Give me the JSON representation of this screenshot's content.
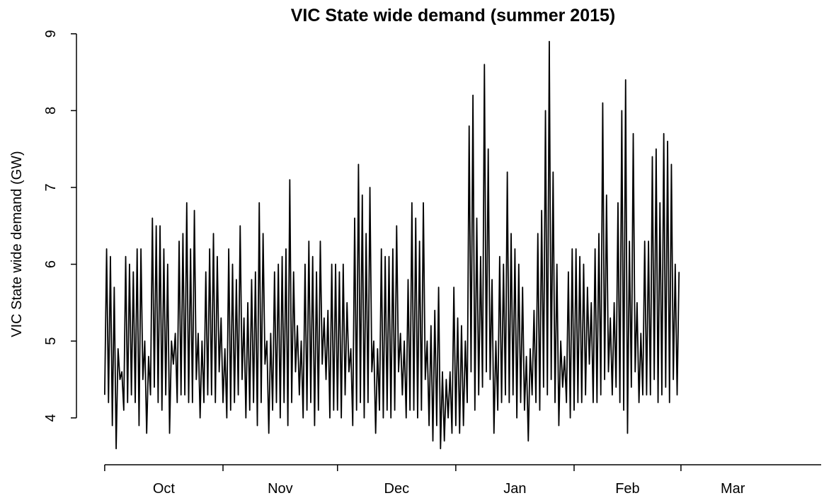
{
  "chart_data": {
    "type": "line",
    "title": "VIC State wide demand (summer 2015)",
    "y_label": "VIC State wide demand (GW)",
    "color": "#000000",
    "xlim": [
      -7.4,
      188.3
    ],
    "month_boundaries": [
      0,
      31,
      61,
      92,
      123,
      151
    ],
    "month_labels": [
      {
        "value": 15.5,
        "label": "Oct"
      },
      {
        "value": 46,
        "label": "Nov"
      },
      {
        "value": 76.5,
        "label": "Dec"
      },
      {
        "value": 107.5,
        "label": "Jan"
      },
      {
        "value": 137,
        "label": "Feb"
      },
      {
        "value": 164.6,
        "label": "Mar"
      }
    ],
    "ylim": [
      3.39,
      9.09
    ],
    "yticks": [
      4,
      5,
      6,
      7,
      8,
      9
    ],
    "x": [
      0,
      0.5,
      1,
      1.5,
      2,
      2.5,
      3,
      3.5,
      4,
      4.5,
      5,
      5.5,
      6,
      6.5,
      7,
      7.5,
      8,
      8.5,
      9,
      9.5,
      10,
      10.5,
      11,
      11.5,
      12,
      12.5,
      13,
      13.5,
      14,
      14.5,
      15,
      15.5,
      16,
      16.5,
      17,
      17.5,
      18,
      18.5,
      19,
      19.5,
      20,
      20.5,
      21,
      21.5,
      22,
      22.5,
      23,
      23.5,
      24,
      24.5,
      25,
      25.5,
      26,
      26.5,
      27,
      27.5,
      28,
      28.5,
      29,
      29.5,
      30,
      30.5,
      31,
      31.5,
      32,
      32.5,
      33,
      33.5,
      34,
      34.5,
      35,
      35.5,
      36,
      36.5,
      37,
      37.5,
      38,
      38.5,
      39,
      39.5,
      40,
      40.5,
      41,
      41.5,
      42,
      42.5,
      43,
      43.5,
      44,
      44.5,
      45,
      45.5,
      46,
      46.5,
      47,
      47.5,
      48,
      48.5,
      49,
      49.5,
      50,
      50.5,
      51,
      51.5,
      52,
      52.5,
      53,
      53.5,
      54,
      54.5,
      55,
      55.5,
      56,
      56.5,
      57,
      57.5,
      58,
      58.5,
      59,
      59.5,
      60,
      60.5,
      61,
      61.5,
      62,
      62.5,
      63,
      63.5,
      64,
      64.5,
      65,
      65.5,
      66,
      66.5,
      67,
      67.5,
      68,
      68.5,
      69,
      69.5,
      70,
      70.5,
      71,
      71.5,
      72,
      72.5,
      73,
      73.5,
      74,
      74.5,
      75,
      75.5,
      76,
      76.5,
      77,
      77.5,
      78,
      78.5,
      79,
      79.5,
      80,
      80.5,
      81,
      81.5,
      82,
      82.5,
      83,
      83.5,
      84,
      84.5,
      85,
      85.5,
      86,
      86.5,
      87,
      87.5,
      88,
      88.5,
      89,
      89.5,
      90,
      90.5,
      91,
      91.5,
      92,
      92.5,
      93,
      93.5,
      94,
      94.5,
      95,
      95.5,
      96,
      96.5,
      97,
      97.5,
      98,
      98.5,
      99,
      99.5,
      100,
      100.5,
      101,
      101.5,
      102,
      102.5,
      103,
      103.5,
      104,
      104.5,
      105,
      105.5,
      106,
      106.5,
      107,
      107.5,
      108,
      108.5,
      109,
      109.5,
      110,
      110.5,
      111,
      111.5,
      112,
      112.5,
      113,
      113.5,
      114,
      114.5,
      115,
      115.5,
      116,
      116.5,
      117,
      117.5,
      118,
      118.5,
      119,
      119.5,
      120,
      120.5,
      121,
      121.5,
      122,
      122.5,
      123,
      123.5,
      124,
      124.5,
      125,
      125.5,
      126,
      126.5,
      127,
      127.5,
      128,
      128.5,
      129,
      129.5,
      130,
      130.5,
      131,
      131.5,
      132,
      132.5,
      133,
      133.5,
      134,
      134.5,
      135,
      135.5,
      136,
      136.5,
      137,
      137.5,
      138,
      138.5,
      139,
      139.5,
      140,
      140.5,
      141,
      141.5,
      142,
      142.5,
      143,
      143.5,
      144,
      144.5,
      145,
      145.5,
      146,
      146.5,
      147,
      147.5,
      148,
      148.5,
      149,
      149.5,
      150,
      150.5
    ],
    "values": [
      4.3,
      6.2,
      4.2,
      6.1,
      3.9,
      5.7,
      3.6,
      4.9,
      4.5,
      4.6,
      4.1,
      6.1,
      4.2,
      6.0,
      4.3,
      5.9,
      4.2,
      6.2,
      3.9,
      6.2,
      4.5,
      5.0,
      3.8,
      4.8,
      4.3,
      6.6,
      4.4,
      6.5,
      4.2,
      6.5,
      4.1,
      6.2,
      4.3,
      6.0,
      3.8,
      5.0,
      4.7,
      5.1,
      4.2,
      6.3,
      4.3,
      6.4,
      4.3,
      6.8,
      4.2,
      6.2,
      4.2,
      6.7,
      4.5,
      5.1,
      4.0,
      5.0,
      4.2,
      5.9,
      4.3,
      6.2,
      4.3,
      6.4,
      4.2,
      6.1,
      4.6,
      5.3,
      4.2,
      4.9,
      4.0,
      6.2,
      4.1,
      6.0,
      4.2,
      5.8,
      4.3,
      6.5,
      4.5,
      5.3,
      4.0,
      5.5,
      4.1,
      5.8,
      4.2,
      5.9,
      3.9,
      6.8,
      4.2,
      6.4,
      4.7,
      5.0,
      3.8,
      5.1,
      4.1,
      5.9,
      4.2,
      6.0,
      4.0,
      6.1,
      4.2,
      6.2,
      3.9,
      7.1,
      4.2,
      5.9,
      4.6,
      5.2,
      4.3,
      5.0,
      4.0,
      6.0,
      4.1,
      6.3,
      4.2,
      6.1,
      3.9,
      5.9,
      4.1,
      6.3,
      4.7,
      5.3,
      4.5,
      5.4,
      4.0,
      6.0,
      4.1,
      6.0,
      4.1,
      5.9,
      4.0,
      6.0,
      4.3,
      5.5,
      4.6,
      4.9,
      3.9,
      6.6,
      4.1,
      7.3,
      4.2,
      6.9,
      4.0,
      6.4,
      4.2,
      7.0,
      4.6,
      5.0,
      3.8,
      4.9,
      4.1,
      6.2,
      4.0,
      6.1,
      4.1,
      6.1,
      4.0,
      6.2,
      4.1,
      6.5,
      4.6,
      5.1,
      4.3,
      5.0,
      4.0,
      5.8,
      4.1,
      6.8,
      4.1,
      6.6,
      4.0,
      6.3,
      4.1,
      6.8,
      4.5,
      5.0,
      3.9,
      5.2,
      3.7,
      5.4,
      3.9,
      5.7,
      3.6,
      4.6,
      3.7,
      4.5,
      4.0,
      4.6,
      3.8,
      5.7,
      3.9,
      5.3,
      3.8,
      5.2,
      3.9,
      5.0,
      4.2,
      7.8,
      4.6,
      8.2,
      4.1,
      6.6,
      4.3,
      6.1,
      4.4,
      8.6,
      4.6,
      7.5,
      4.5,
      5.8,
      3.8,
      5.0,
      4.1,
      6.1,
      4.2,
      6.0,
      4.3,
      7.2,
      4.2,
      6.4,
      4.3,
      6.2,
      4.0,
      6.0,
      4.2,
      5.7,
      4.1,
      4.8,
      3.7,
      4.9,
      4.3,
      5.4,
      4.2,
      6.4,
      4.1,
      6.7,
      4.4,
      8.0,
      4.3,
      8.9,
      4.5,
      7.2,
      4.2,
      6.0,
      3.9,
      5.0,
      4.4,
      4.8,
      4.2,
      5.9,
      4.0,
      6.2,
      4.1,
      6.2,
      4.2,
      6.1,
      4.2,
      6.0,
      4.3,
      5.7,
      4.7,
      5.5,
      4.2,
      6.2,
      4.2,
      6.4,
      4.3,
      8.1,
      4.5,
      6.9,
      4.6,
      5.3,
      4.3,
      5.5,
      4.4,
      6.8,
      4.2,
      8.0,
      4.1,
      8.4,
      3.8,
      6.3,
      4.4,
      7.7,
      4.6,
      5.5,
      4.2,
      5.1,
      4.3,
      6.3,
      4.3,
      6.3,
      4.3,
      7.4,
      4.5,
      7.5,
      4.2,
      6.8,
      4.3,
      7.7,
      4.4,
      7.6,
      4.2,
      7.3,
      4.5,
      6.0,
      4.3,
      5.9
    ]
  }
}
